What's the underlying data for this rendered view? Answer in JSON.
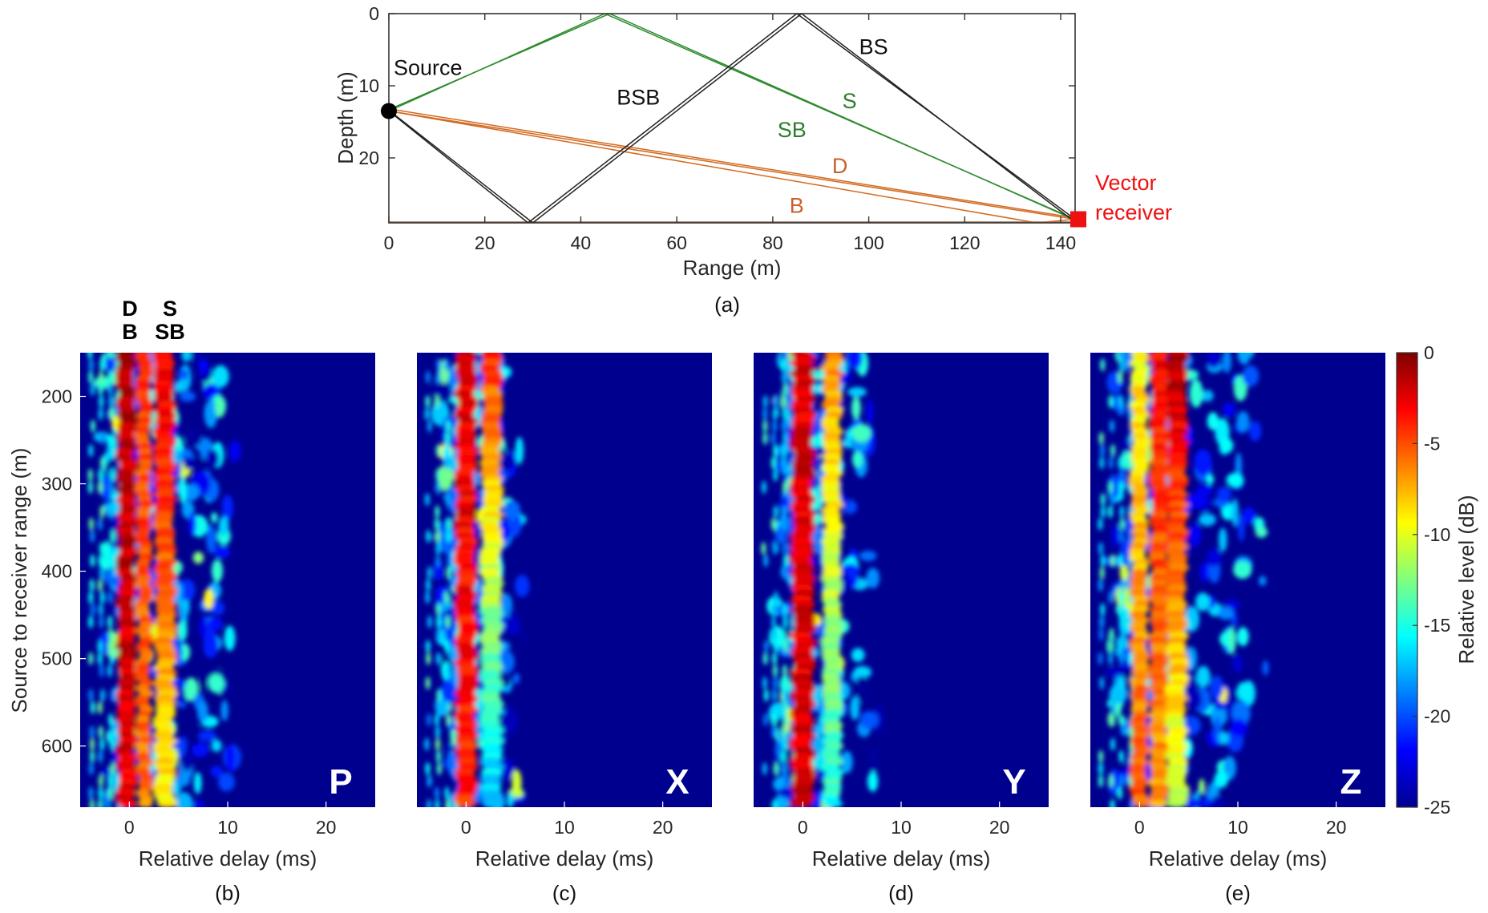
{
  "chart_data": [
    {
      "type": "ray_diagram",
      "panel": "(a)",
      "xlabel": "Range (m)",
      "ylabel": "Depth (m)",
      "xlim": [
        0,
        143
      ],
      "ylim": [
        29,
        0
      ],
      "xticks": [
        0,
        20,
        40,
        60,
        80,
        100,
        120,
        140
      ],
      "yticks": [
        0,
        10,
        20
      ],
      "source_label": "Source",
      "source": {
        "range": 0,
        "depth": 13.5
      },
      "receiver_label_line1": "Vector",
      "receiver_label_line2": "receiver",
      "receiver": {
        "range": 143,
        "depth": 28.5
      },
      "colors": {
        "direct": "#d2691e",
        "surface": "#2e8b2e",
        "bottom_surface": "#222222",
        "receiver": "#ee1111",
        "seabed": "#8b5a3c"
      },
      "rays": [
        {
          "name": "D",
          "color": "direct",
          "points": [
            [
              0,
              13.5
            ],
            [
              143,
              28.5
            ]
          ]
        },
        {
          "name": "D2",
          "color": "direct",
          "points": [
            [
              0,
              13.2
            ],
            [
              142,
              28.2
            ]
          ]
        },
        {
          "name": "B",
          "color": "direct",
          "points": [
            [
              0,
              13.5
            ],
            [
              135,
              29.0
            ],
            [
              143,
              28.5
            ]
          ]
        },
        {
          "name": "S",
          "color": "surface",
          "points": [
            [
              0,
              13.5
            ],
            [
              45,
              0
            ],
            [
              143,
              28.5
            ]
          ]
        },
        {
          "name": "SB",
          "color": "surface",
          "points": [
            [
              0,
              13.3
            ],
            [
              46,
              0
            ],
            [
              142,
              28.3
            ]
          ]
        },
        {
          "name": "BSB",
          "color": "bottom_surface",
          "points": [
            [
              0,
              13.5
            ],
            [
              29,
              29
            ],
            [
              85,
              0
            ],
            [
              143,
              28.5
            ]
          ]
        },
        {
          "name": "BSB2",
          "color": "bottom_surface",
          "points": [
            [
              0,
              13.4
            ],
            [
              30,
              29
            ],
            [
              86,
              0
            ],
            [
              142,
              28.4
            ]
          ]
        }
      ],
      "ray_labels": [
        {
          "text": "BS",
          "color": "#111111",
          "range": 101,
          "depth": 4.5
        },
        {
          "text": "BSB",
          "color": "#111111",
          "range": 52,
          "depth": 11.5
        },
        {
          "text": "S",
          "color": "#2e7d2e",
          "range": 96,
          "depth": 12.0
        },
        {
          "text": "SB",
          "color": "#2e7d2e",
          "range": 84,
          "depth": 16.0
        },
        {
          "text": "D",
          "color": "#c8622a",
          "range": 94,
          "depth": 21.0
        },
        {
          "text": "B",
          "color": "#c8622a",
          "range": 85,
          "depth": 26.5
        }
      ]
    },
    {
      "type": "heatmap",
      "panels": [
        {
          "caption": "(b)",
          "channel": "P"
        },
        {
          "caption": "(c)",
          "channel": "X"
        },
        {
          "caption": "(d)",
          "channel": "Y"
        },
        {
          "caption": "(e)",
          "channel": "Z"
        }
      ],
      "xlabel": "Relative delay (ms)",
      "ylabel": "Source to receiver range (m)",
      "xlim": [
        -5,
        25
      ],
      "ylim": [
        150,
        670
      ],
      "xticks": [
        0,
        10,
        20
      ],
      "yticks": [
        200,
        300,
        400,
        500,
        600
      ],
      "arrival_labels": {
        "col1_top": "D",
        "col1_bottom": "B",
        "col2_top": "S",
        "col2_bottom": "SB"
      },
      "colorbar": {
        "label": "Relative level (dB)",
        "range": [
          -25,
          0
        ],
        "ticks": [
          0,
          -5,
          -10,
          -15,
          -20,
          -25
        ]
      },
      "arrival_tracks": [
        {
          "channel": "P",
          "tracks": [
            {
              "delay": -0.3,
              "width": 0.8,
              "level_top": 0,
              "level_bottom": -1
            },
            {
              "delay": 1.5,
              "width": 0.6,
              "level_top": -3,
              "level_bottom": -5
            },
            {
              "delay": 3.6,
              "width": 0.9,
              "level_top": -1,
              "level_bottom": -8
            }
          ]
        },
        {
          "channel": "X",
          "tracks": [
            {
              "delay": 0.0,
              "width": 0.9,
              "level_top": -1,
              "level_bottom": -3
            },
            {
              "delay": 2.6,
              "width": 0.9,
              "level_top": -3,
              "level_bottom": -16
            }
          ]
        },
        {
          "channel": "Y",
          "tracks": [
            {
              "delay": 0.0,
              "width": 1.0,
              "level_top": -1,
              "level_bottom": -1
            },
            {
              "delay": 3.0,
              "width": 0.8,
              "level_top": -5,
              "level_bottom": -14
            }
          ]
        },
        {
          "channel": "Z",
          "tracks": [
            {
              "delay": 0.0,
              "width": 0.7,
              "level_top": -8,
              "level_bottom": -4
            },
            {
              "delay": 2.0,
              "width": 0.8,
              "level_top": -2,
              "level_bottom": -6
            },
            {
              "delay": 3.8,
              "width": 0.9,
              "level_top": 0,
              "level_bottom": -10
            }
          ]
        }
      ]
    }
  ]
}
